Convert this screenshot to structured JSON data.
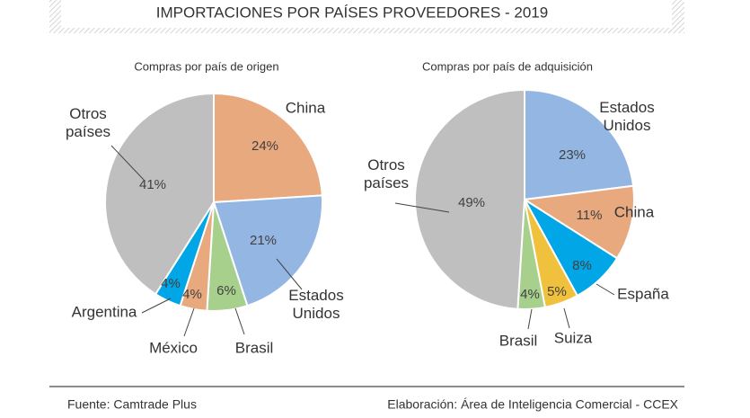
{
  "title": "IMPORTACIONES POR PAÍSES PROVEEDORES - 2019",
  "source": "Fuente: Camtrade Plus",
  "credit": "Elaboración: Área de Inteligencia Comercial - CCEX",
  "chart_data": [
    {
      "type": "pie",
      "title": "Compras por país de origen",
      "categories": [
        "China",
        "Estados Unidos",
        "Brasil",
        "México",
        "Argentina",
        "Otros países"
      ],
      "values": [
        24,
        21,
        6,
        4,
        4,
        41
      ],
      "value_labels": [
        "24%",
        "21%",
        "6%",
        "4%",
        "4%",
        "41%"
      ],
      "colors": [
        "#e8a97f",
        "#94b6e2",
        "#a8d08d",
        "#e8a97f",
        "#00a6e6",
        "#bfbfbf"
      ]
    },
    {
      "type": "pie",
      "title": "Compras por país de adquisición",
      "categories": [
        "Estados Unidos",
        "China",
        "España",
        "Suiza",
        "Brasil",
        "Otros países"
      ],
      "values": [
        23,
        11,
        8,
        5,
        4,
        49
      ],
      "value_labels": [
        "23%",
        "11%",
        "8%",
        "5%",
        "4%",
        "49%"
      ],
      "colors": [
        "#94b6e2",
        "#e8a97f",
        "#00a6e6",
        "#f0c13d",
        "#a8d08d",
        "#bfbfbf"
      ]
    }
  ]
}
